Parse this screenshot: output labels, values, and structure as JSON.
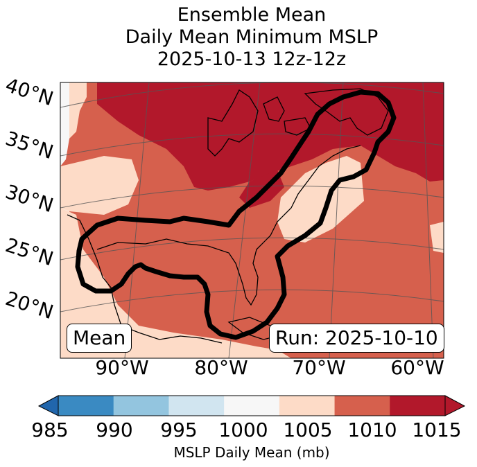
{
  "title": {
    "line1": "Ensemble Mean",
    "line2": "Daily Mean Minimum MSLP",
    "line3": "2025-10-13 12z-12z"
  },
  "lat_labels": [
    "40°N",
    "35°N",
    "30°N",
    "25°N",
    "20°N"
  ],
  "lon_labels": [
    "90°W",
    "80°W",
    "70°W",
    "60°W"
  ],
  "mean_box": "Mean",
  "run_box": "Run: 2025-10-10",
  "colorbar": {
    "label": "MSLP Daily Mean (mb)",
    "ticks": [
      "985",
      "990",
      "995",
      "1000",
      "1005",
      "1010",
      "1015"
    ],
    "colors": [
      "#3a8ac2",
      "#93c5df",
      "#d1e5f0",
      "#f7f7f7",
      "#fddbc7",
      "#d6604d",
      "#b2182b"
    ],
    "under_color": "#2166ac",
    "over_color": "#b2182b"
  },
  "map_colors": {
    "c1005": "#fddbc7",
    "c1010": "#d6604d",
    "c1015": "#b2182b",
    "c1000": "#f7f7f7"
  }
}
